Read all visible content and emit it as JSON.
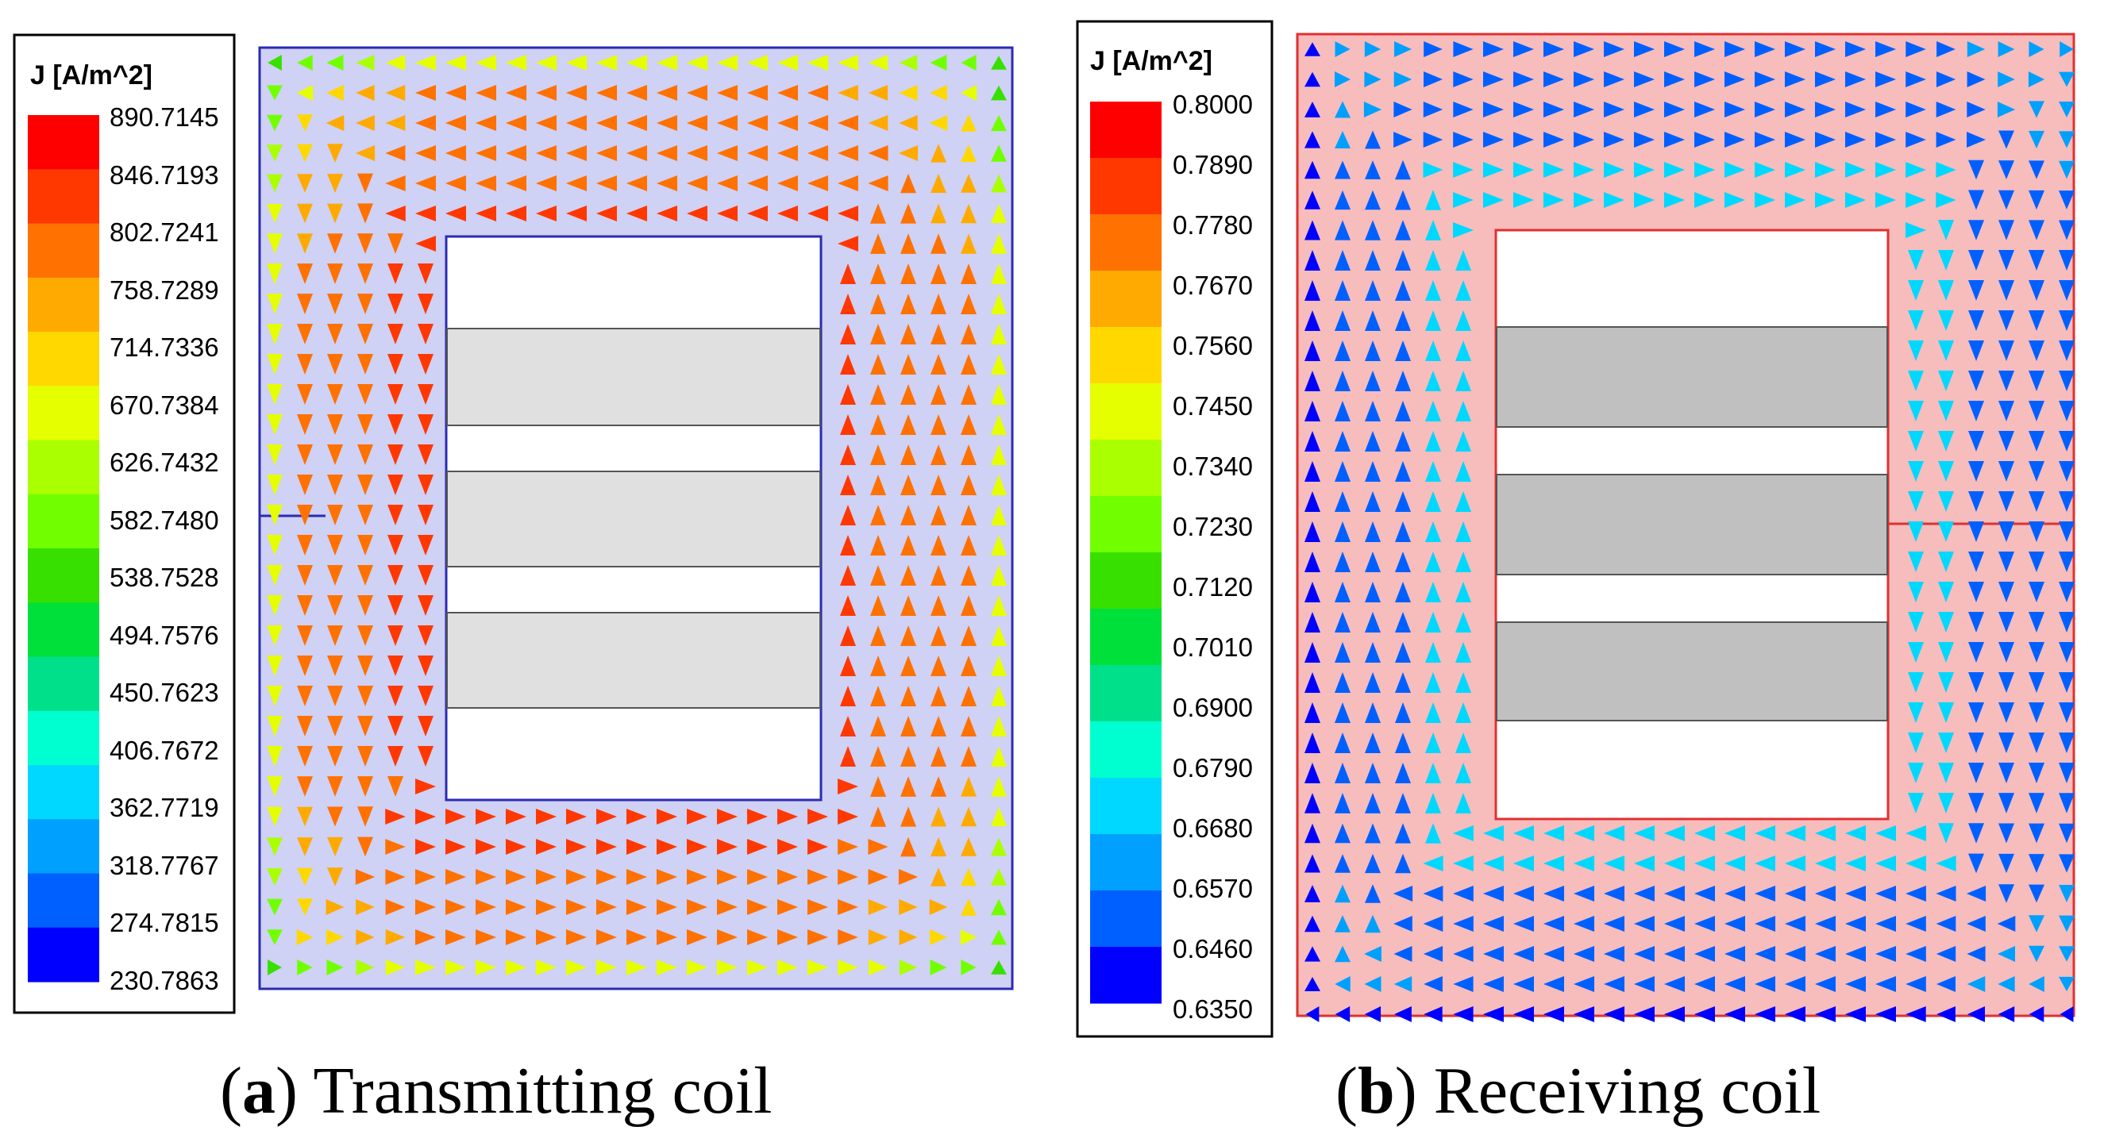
{
  "chart_data": [
    {
      "type": "vector-field",
      "panel": "a",
      "caption_letter": "a",
      "caption_text": "Transmitting coil",
      "legend_title": "J [A/m^2]",
      "legend_ticks": [
        "890.7145",
        "846.7193",
        "802.7241",
        "758.7289",
        "714.7336",
        "670.7384",
        "626.7432",
        "582.7480",
        "538.7528",
        "494.7576",
        "450.7623",
        "406.7672",
        "362.7719",
        "318.7767",
        "274.7815",
        "230.7863"
      ],
      "colorbar": [
        "#ff0000",
        "#ff3800",
        "#ff7100",
        "#ffaa00",
        "#ffd800",
        "#e6ff00",
        "#aaff00",
        "#71ff00",
        "#38e000",
        "#00e03a",
        "#00e08a",
        "#00ffd0",
        "#00d8ff",
        "#00a0ff",
        "#0060ff",
        "#0000ff"
      ],
      "background_color": "#cfd1f5",
      "frame_color": "#2b2bb3",
      "circulation": "counter-clockwise",
      "value_range": [
        230.7863,
        890.7145
      ]
    },
    {
      "type": "vector-field",
      "panel": "b",
      "caption_letter": "b",
      "caption_text": "Receiving coil",
      "legend_title": "J [A/m^2]",
      "legend_ticks": [
        "0.8000",
        "0.7890",
        "0.7780",
        "0.7670",
        "0.7560",
        "0.7450",
        "0.7340",
        "0.7230",
        "0.7120",
        "0.7010",
        "0.6900",
        "0.6790",
        "0.6680",
        "0.6570",
        "0.6460",
        "0.6350"
      ],
      "colorbar": [
        "#ff0000",
        "#ff3800",
        "#ff7100",
        "#ffaa00",
        "#ffd800",
        "#e6ff00",
        "#aaff00",
        "#71ff00",
        "#38e000",
        "#00e03a",
        "#00e08a",
        "#00ffd0",
        "#00d8ff",
        "#00a0ff",
        "#0060ff",
        "#0000ff"
      ],
      "background_color": "#f7bcbc",
      "frame_color": "#e03030",
      "circulation": "clockwise",
      "value_range": [
        0.635,
        0.8
      ]
    }
  ]
}
